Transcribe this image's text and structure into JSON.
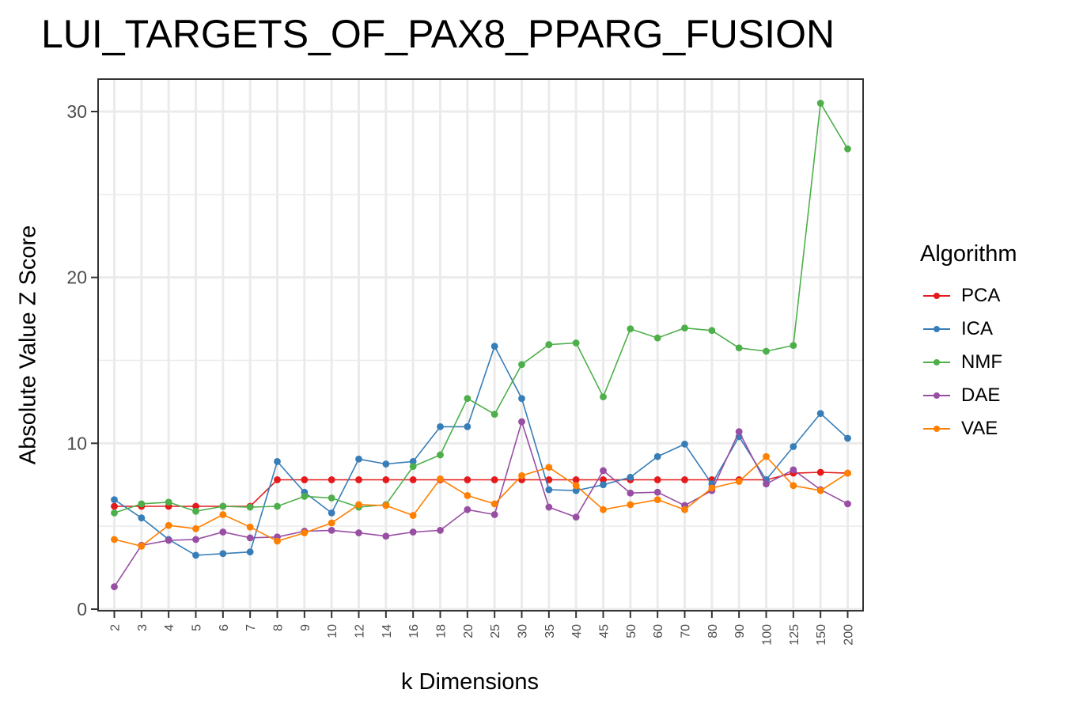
{
  "chart_data": {
    "type": "line",
    "title": "LUI_TARGETS_OF_PAX8_PPARG_FUSION",
    "xlabel": "k Dimensions",
    "ylabel": "Absolute Value Z Score",
    "categories": [
      "2",
      "3",
      "4",
      "5",
      "6",
      "7",
      "8",
      "9",
      "10",
      "12",
      "14",
      "16",
      "18",
      "20",
      "25",
      "30",
      "35",
      "40",
      "45",
      "50",
      "60",
      "70",
      "80",
      "90",
      "100",
      "125",
      "150",
      "200"
    ],
    "ylim": [
      0,
      32
    ],
    "yticks": [
      0,
      10,
      20,
      30
    ],
    "grid": true,
    "legend_title": "Algorithm",
    "legend_position": "right",
    "series": [
      {
        "name": "PCA",
        "color": "#e41a1c",
        "values": [
          6.2,
          6.2,
          6.2,
          6.2,
          6.2,
          6.2,
          7.8,
          7.8,
          7.8,
          7.8,
          7.8,
          7.8,
          7.8,
          7.8,
          7.8,
          7.8,
          7.8,
          7.8,
          7.8,
          7.8,
          7.8,
          7.8,
          7.8,
          7.8,
          7.8,
          8.2,
          8.25,
          8.2
        ]
      },
      {
        "name": "ICA",
        "color": "#377eb8",
        "values": [
          6.6,
          5.5,
          4.2,
          3.25,
          3.35,
          3.45,
          8.9,
          7.05,
          5.8,
          9.05,
          8.75,
          8.9,
          11.0,
          11.0,
          15.85,
          12.7,
          7.2,
          7.15,
          7.5,
          7.95,
          9.2,
          9.95,
          7.55,
          10.4,
          7.8,
          9.8,
          11.8,
          10.3
        ]
      },
      {
        "name": "NMF",
        "color": "#4daf4a",
        "values": [
          5.8,
          6.35,
          6.45,
          5.9,
          6.2,
          6.15,
          6.2,
          6.8,
          6.7,
          6.15,
          6.3,
          8.6,
          9.3,
          12.7,
          11.75,
          14.75,
          15.95,
          16.05,
          12.8,
          16.9,
          16.35,
          16.95,
          16.8,
          15.75,
          15.55,
          15.9,
          30.5,
          27.75
        ]
      },
      {
        "name": "DAE",
        "color": "#984ea3",
        "values": [
          1.35,
          3.85,
          4.15,
          4.2,
          4.65,
          4.3,
          4.35,
          4.7,
          4.75,
          4.6,
          4.4,
          4.65,
          4.75,
          6.0,
          5.7,
          11.3,
          6.15,
          5.55,
          8.35,
          7.0,
          7.05,
          6.25,
          7.15,
          10.7,
          7.55,
          8.4,
          7.2,
          6.35
        ]
      },
      {
        "name": "VAE",
        "color": "#ff7f00",
        "values": [
          4.2,
          3.8,
          5.05,
          4.85,
          5.7,
          4.95,
          4.1,
          4.6,
          5.2,
          6.3,
          6.25,
          5.65,
          7.85,
          6.85,
          6.35,
          8.05,
          8.55,
          7.45,
          6.0,
          6.3,
          6.6,
          6.0,
          7.3,
          7.7,
          9.2,
          7.45,
          7.15,
          8.2
        ]
      }
    ]
  }
}
